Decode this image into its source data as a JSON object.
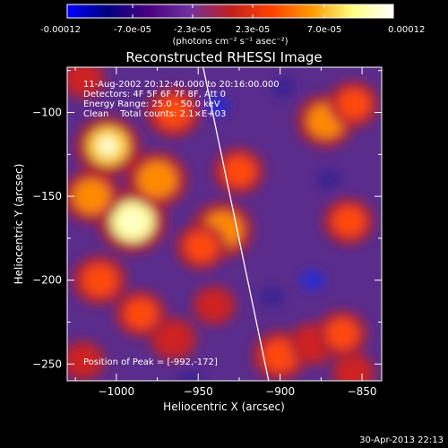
{
  "colorbar": {
    "min_label": "-0.00012",
    "max_label": "0.00012",
    "tick_labels": [
      "-7.0e-05",
      "-2.3e-05",
      "2.3e-05",
      "7.0e-05"
    ],
    "units_label": "(photons cm⁻² s⁻¹ asec⁻²)",
    "colors": [
      "#0000ff",
      "#000080",
      "#4b0082",
      "#7030a0",
      "#c02020",
      "#ff4000",
      "#ff9900",
      "#ffff80",
      "#ffffff"
    ]
  },
  "plot": {
    "title": "Reconstructed RHESSI Image",
    "info_lines": [
      "11-Aug-2002 20:12:40.000 to 20:16:00.000",
      "Detectors: 4F 5F 6F 7F 8F, Att 0",
      "Energy Range: 25.0 - 50.0 keV",
      "Clean    Total counts: 2.1×E+03"
    ],
    "peak_text": "Position of Peak = [-992,-172]",
    "footer_timestamp": "30-Apr-2013 22:13",
    "background_color": "#5a2c8c"
  },
  "chart_data": {
    "type": "heatmap",
    "title": "Reconstructed RHESSI Image",
    "xlabel": "Heliocentric X (arcsec)",
    "ylabel": "Heliocentric Y (arcsec)",
    "xlim": [
      -1030,
      -838
    ],
    "ylim": [
      -260,
      -73
    ],
    "x_ticks": [
      -1000,
      -950,
      -900,
      -850
    ],
    "y_ticks": [
      -100,
      -150,
      -200,
      -250
    ],
    "x_tick_labels": [
      "−1000",
      "−950",
      "−900",
      "−850"
    ],
    "y_tick_labels": [
      "−100",
      "−150",
      "−200",
      "−250"
    ],
    "colorbar_range": [
      -0.00012,
      0.00012
    ],
    "peak": [
      -992,
      -172
    ],
    "limb_line": [
      [
        -947,
        -73
      ],
      [
        -907,
        -260
      ]
    ],
    "blobs": [
      {
        "x": -1020,
        "y": -80,
        "value": 5e-05
      },
      {
        "x": -1005,
        "y": -120,
        "value": 0.00011
      },
      {
        "x": -990,
        "y": -165,
        "value": 0.00012
      },
      {
        "x": -1015,
        "y": -150,
        "value": 9e-05
      },
      {
        "x": -975,
        "y": -140,
        "value": 0.0001
      },
      {
        "x": -965,
        "y": -100,
        "value": 8e-05
      },
      {
        "x": -935,
        "y": -170,
        "value": 0.0001
      },
      {
        "x": -948,
        "y": -180,
        "value": 7e-05
      },
      {
        "x": -925,
        "y": -135,
        "value": 7e-05
      },
      {
        "x": -872,
        "y": -105,
        "value": 9e-05
      },
      {
        "x": -855,
        "y": -95,
        "value": 7e-05
      },
      {
        "x": -858,
        "y": -165,
        "value": 7e-05
      },
      {
        "x": -1010,
        "y": -200,
        "value": 8e-05
      },
      {
        "x": -985,
        "y": -220,
        "value": 7e-05
      },
      {
        "x": -965,
        "y": -235,
        "value": 6e-05
      },
      {
        "x": -1020,
        "y": -248,
        "value": 5e-05
      },
      {
        "x": -900,
        "y": -245,
        "value": 8e-05
      },
      {
        "x": -880,
        "y": -238,
        "value": 6e-05
      },
      {
        "x": -862,
        "y": -232,
        "value": 7e-05
      },
      {
        "x": -855,
        "y": -255,
        "value": 5e-05
      },
      {
        "x": -940,
        "y": -215,
        "value": 5e-05
      }
    ],
    "negative_spots": [
      {
        "x": -938,
        "y": -96,
        "value": -5e-05
      },
      {
        "x": -898,
        "y": -85,
        "value": -4e-05
      },
      {
        "x": -870,
        "y": -140,
        "value": -4e-05
      },
      {
        "x": -880,
        "y": -200,
        "value": -5e-05
      },
      {
        "x": -905,
        "y": -210,
        "value": -3e-05
      },
      {
        "x": -955,
        "y": -260,
        "value": -3e-05
      }
    ]
  }
}
